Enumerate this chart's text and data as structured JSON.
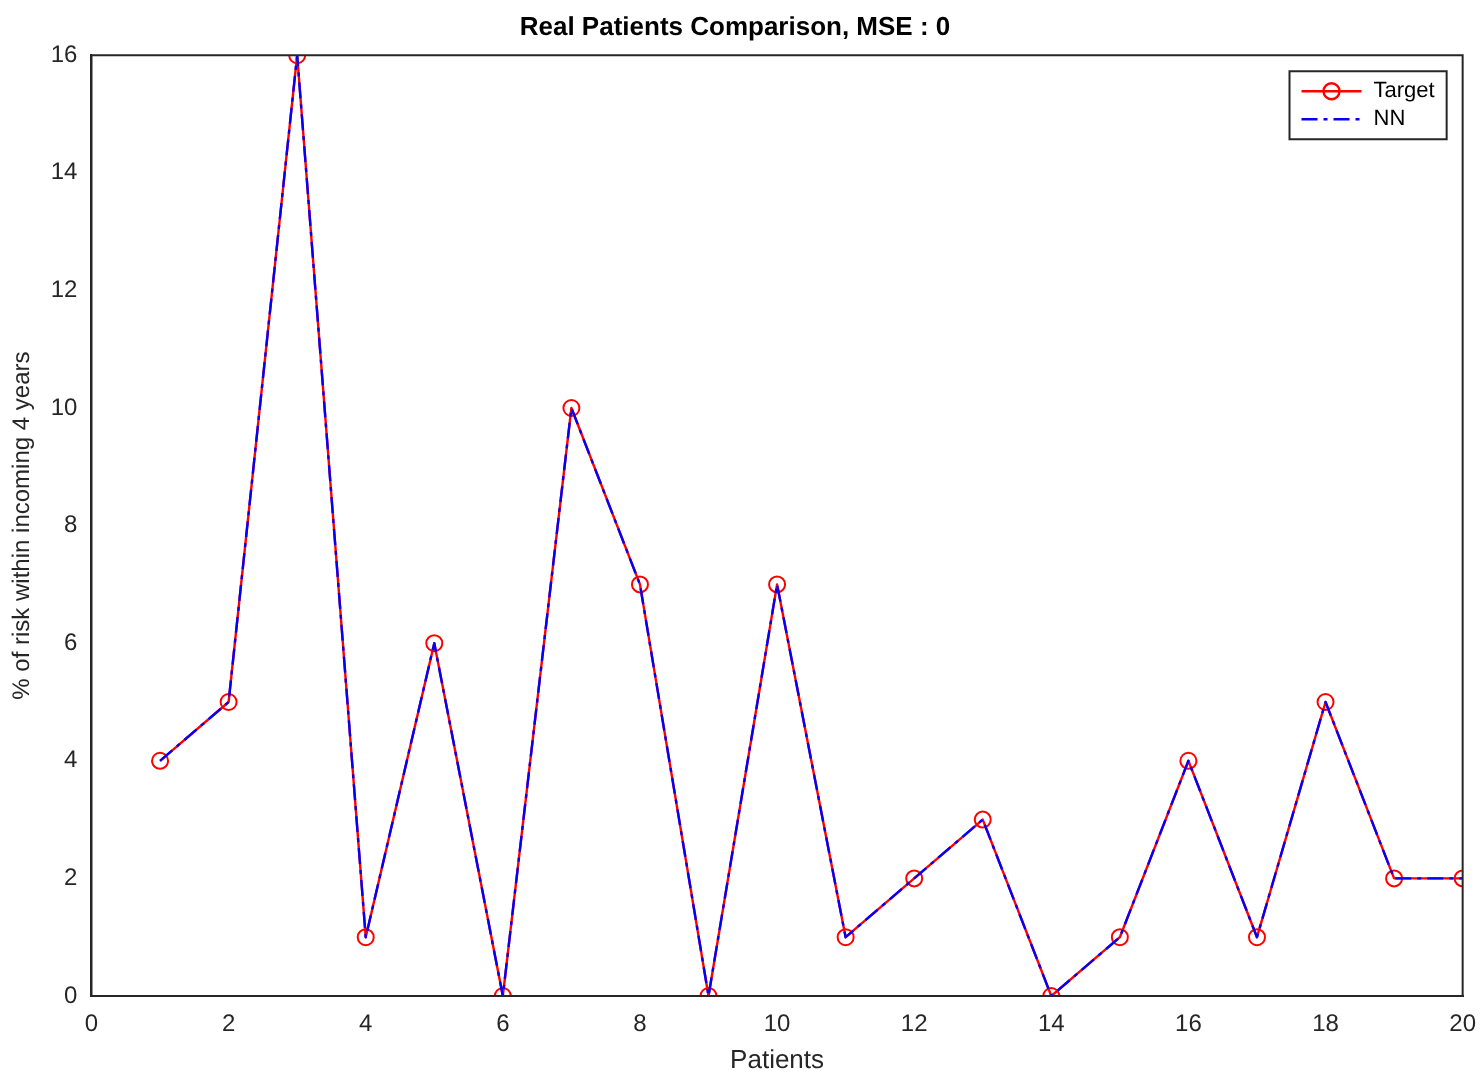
{
  "chart_data": {
    "type": "line",
    "title": "Real Patients Comparison, MSE : 0",
    "xlabel": "Patients",
    "ylabel": "% of risk within incoming 4 years",
    "x": [
      1,
      2,
      3,
      4,
      5,
      6,
      7,
      8,
      9,
      10,
      11,
      12,
      13,
      14,
      15,
      16,
      17,
      18,
      19,
      20
    ],
    "series": [
      {
        "name": "Target",
        "color": "#ff0000",
        "marker": "circle",
        "line_style": "solid",
        "values": [
          4,
          5,
          16,
          1,
          6,
          0,
          10,
          7,
          0,
          7,
          1,
          2,
          3,
          0,
          1,
          4,
          1,
          5,
          2,
          2
        ]
      },
      {
        "name": "NN",
        "color": "#0000ff",
        "marker": "none",
        "line_style": "dashed",
        "values": [
          4,
          5,
          16,
          1,
          6,
          0,
          10,
          7,
          0,
          7,
          1,
          2,
          3,
          0,
          1,
          4,
          1,
          5,
          2,
          2
        ]
      }
    ],
    "xlim": [
      0,
      20
    ],
    "xticks": [
      0,
      2,
      4,
      6,
      8,
      10,
      12,
      14,
      16,
      18,
      20
    ],
    "ylim": [
      0,
      16
    ],
    "yticks": [
      0,
      2,
      4,
      6,
      8,
      10,
      12,
      14,
      16
    ],
    "grid": false,
    "legend": "top right"
  }
}
